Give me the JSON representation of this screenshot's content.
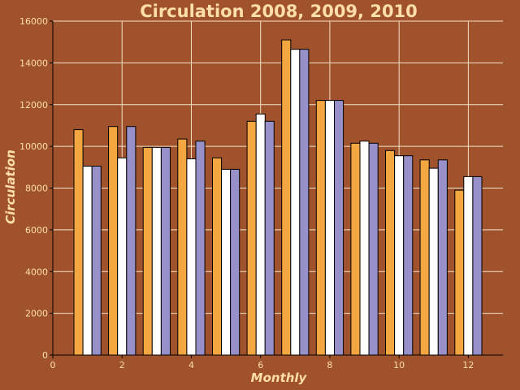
{
  "chart_data": {
    "type": "bar",
    "title": "Circulation 2008, 2009, 2010",
    "xlabel": "Monthly",
    "ylabel": "Circulation",
    "x": [
      1,
      2,
      3,
      4,
      5,
      6,
      7,
      8,
      9,
      10,
      11,
      12
    ],
    "xlim": [
      0,
      13
    ],
    "ylim": [
      0,
      16000
    ],
    "xticks": [
      0,
      2,
      4,
      6,
      8,
      10,
      12
    ],
    "yticks": [
      0,
      2000,
      4000,
      6000,
      8000,
      10000,
      12000,
      14000,
      16000
    ],
    "grid": true,
    "series": [
      {
        "color": "#f4a641",
        "values": [
          10800,
          10950,
          9950,
          10350,
          9450,
          11200,
          15100,
          12200,
          10150,
          9800,
          9350,
          7900
        ]
      },
      {
        "color": "#ffffff",
        "values": [
          9050,
          9450,
          9950,
          9400,
          8900,
          11550,
          14650,
          12200,
          10250,
          9550,
          8950,
          8550
        ]
      },
      {
        "color": "#9890c8",
        "values": [
          9050,
          10950,
          9950,
          10250,
          8900,
          11200,
          14650,
          12200,
          10150,
          9550,
          9350,
          8550
        ]
      }
    ]
  }
}
